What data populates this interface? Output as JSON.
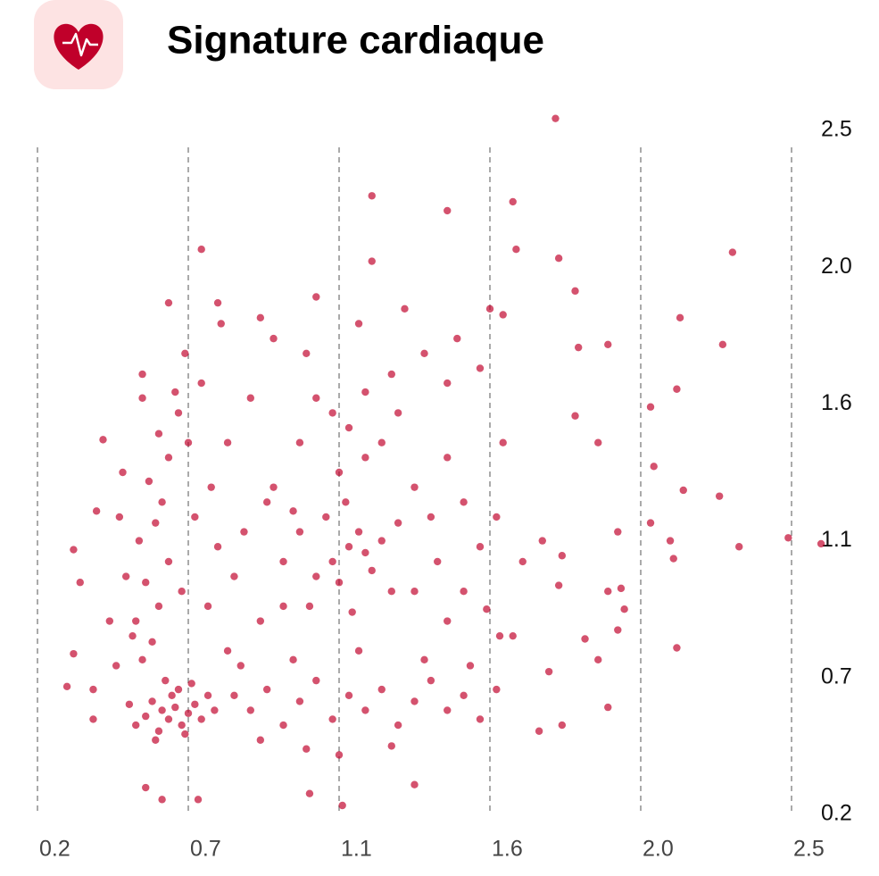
{
  "chart_data": {
    "type": "scatter",
    "title": "Signature cardiaque",
    "color": "#c0002a",
    "grid": true,
    "xlim": [
      0.2,
      2.5
    ],
    "ylim": [
      0.2,
      2.5
    ],
    "xticks": [
      0.2,
      {
        "value": 0.66,
        "label": "0.7"
      },
      {
        "value": 1.12,
        "label": "1.1"
      },
      {
        "value": 1.58,
        "label": "1.6"
      },
      {
        "value": 2.04,
        "label": "2.0"
      },
      2.5
    ],
    "yticks": [
      0.2,
      {
        "value": 0.66,
        "label": "0.7"
      },
      {
        "value": 1.12,
        "label": "1.1"
      },
      {
        "value": 1.58,
        "label": "1.6"
      },
      {
        "value": 2.04,
        "label": "2.0"
      },
      2.5
    ],
    "x": [
      1.78,
      1.22,
      1.45,
      1.65,
      2.32,
      0.7,
      1.66,
      1.22,
      1.79,
      0.6,
      0.75,
      1.05,
      2.16,
      1.84,
      0.88,
      2.29,
      1.85,
      1.94,
      0.4,
      0.52,
      2.15,
      2.07,
      1.84,
      1.91,
      2.08,
      2.17,
      2.28,
      2.49,
      2.59,
      2.34,
      2.13,
      2.14,
      1.97,
      2.07,
      0.31,
      0.38,
      0.33,
      0.29,
      0.31,
      0.37,
      0.37,
      0.53,
      0.58,
      0.69,
      1.13,
      1.03,
      1.35,
      2.15,
      1.99,
      1.97,
      1.87,
      1.91,
      1.94,
      1.8,
      1.73,
      1.76,
      1.94,
      1.98,
      1.79,
      1.8,
      1.74,
      1.57,
      1.61,
      0.58,
      0.6,
      0.62,
      0.64,
      0.55,
      0.66,
      0.61,
      0.57,
      0.68,
      0.63,
      0.59,
      0.53,
      0.7,
      0.72,
      0.5,
      0.56,
      0.65,
      0.74,
      0.48,
      0.67,
      0.52,
      0.55,
      0.5,
      0.57,
      0.53,
      0.6,
      0.51,
      0.56,
      0.58,
      0.54,
      0.6,
      0.57,
      0.63,
      0.52,
      0.66,
      0.68,
      0.64,
      0.49,
      0.47,
      0.45,
      0.44,
      0.42,
      0.46,
      0.62,
      0.7,
      0.73,
      0.75,
      0.72,
      0.78,
      0.8,
      1.1,
      1.15,
      1.2,
      1.18,
      1.12,
      1.05,
      1.22,
      1.25,
      1.08,
      1.0,
      0.95,
      1.14,
      1.28,
      1.03,
      1.16,
      0.98,
      1.3,
      1.12,
      1.2,
      0.92,
      0.8,
      0.85,
      0.9,
      0.95,
      1.0,
      1.05,
      1.1,
      1.15,
      1.2,
      1.25,
      1.3,
      1.35,
      1.4,
      1.45,
      1.5,
      1.55,
      0.88,
      1.02,
      1.12,
      1.28,
      0.82,
      0.98,
      1.18,
      1.38,
      1.52,
      0.78,
      0.85,
      0.9,
      0.88,
      1.0,
      1.05,
      1.1,
      1.15,
      1.2,
      1.25,
      1.3,
      1.35,
      1.4,
      1.45,
      1.5,
      1.55,
      1.6,
      1.62,
      1.55,
      1.48,
      1.38,
      1.28,
      1.02,
      0.92,
      1.58,
      1.62,
      1.45,
      1.35,
      1.5,
      1.65,
      1.6,
      1.68,
      1.42,
      0.83,
      0.95,
      0.76,
      0.65,
      1.18,
      1.32,
      1.45
    ],
    "values": [
      2.54,
      2.28,
      2.23,
      2.26,
      2.09,
      2.1,
      2.1,
      2.06,
      2.07,
      1.92,
      1.92,
      1.94,
      1.87,
      1.96,
      1.87,
      1.78,
      1.77,
      1.78,
      1.46,
      1.68,
      1.63,
      1.57,
      1.54,
      1.45,
      1.37,
      1.29,
      1.27,
      1.13,
      1.11,
      1.1,
      1.12,
      1.06,
      1.15,
      1.18,
      1.09,
      1.22,
      0.98,
      0.63,
      0.74,
      0.62,
      0.52,
      0.29,
      0.25,
      0.25,
      0.23,
      0.27,
      0.3,
      0.76,
      0.89,
      0.82,
      0.79,
      0.72,
      0.56,
      0.5,
      0.48,
      0.68,
      0.95,
      0.96,
      0.97,
      1.07,
      1.12,
      0.89,
      0.8,
      0.55,
      0.52,
      0.56,
      0.5,
      0.58,
      0.54,
      0.6,
      0.48,
      0.57,
      0.62,
      0.65,
      0.53,
      0.52,
      0.6,
      0.5,
      0.45,
      0.47,
      0.55,
      0.57,
      0.64,
      0.72,
      0.78,
      0.85,
      0.9,
      0.98,
      1.05,
      1.12,
      1.18,
      1.25,
      1.32,
      1.4,
      1.48,
      1.55,
      1.6,
      1.45,
      1.2,
      0.95,
      0.8,
      1.0,
      1.2,
      0.7,
      0.85,
      1.35,
      1.62,
      1.65,
      1.3,
      1.1,
      0.9,
      0.75,
      1.0,
      1.05,
      1.1,
      1.08,
      1.15,
      0.98,
      1.0,
      1.02,
      1.12,
      1.2,
      1.15,
      1.05,
      1.25,
      0.95,
      0.9,
      0.88,
      1.22,
      1.18,
      1.35,
      1.4,
      1.3,
      0.6,
      0.55,
      0.62,
      0.5,
      0.58,
      0.65,
      0.52,
      0.6,
      0.55,
      0.62,
      0.5,
      0.58,
      0.65,
      0.55,
      0.6,
      0.52,
      0.45,
      0.42,
      0.4,
      0.43,
      0.7,
      0.72,
      0.75,
      0.72,
      0.7,
      1.45,
      1.6,
      1.25,
      0.85,
      1.45,
      1.6,
      1.55,
      1.5,
      1.62,
      1.45,
      1.55,
      1.3,
      1.2,
      1.4,
      1.25,
      1.1,
      1.2,
      1.45,
      1.7,
      1.8,
      1.75,
      1.68,
      1.75,
      1.8,
      1.9,
      1.88,
      0.85,
      0.95,
      0.95,
      0.8,
      0.62,
      1.05,
      1.05,
      1.15,
      0.9,
      1.85,
      1.75,
      1.85,
      1.9,
      1.65
    ]
  }
}
